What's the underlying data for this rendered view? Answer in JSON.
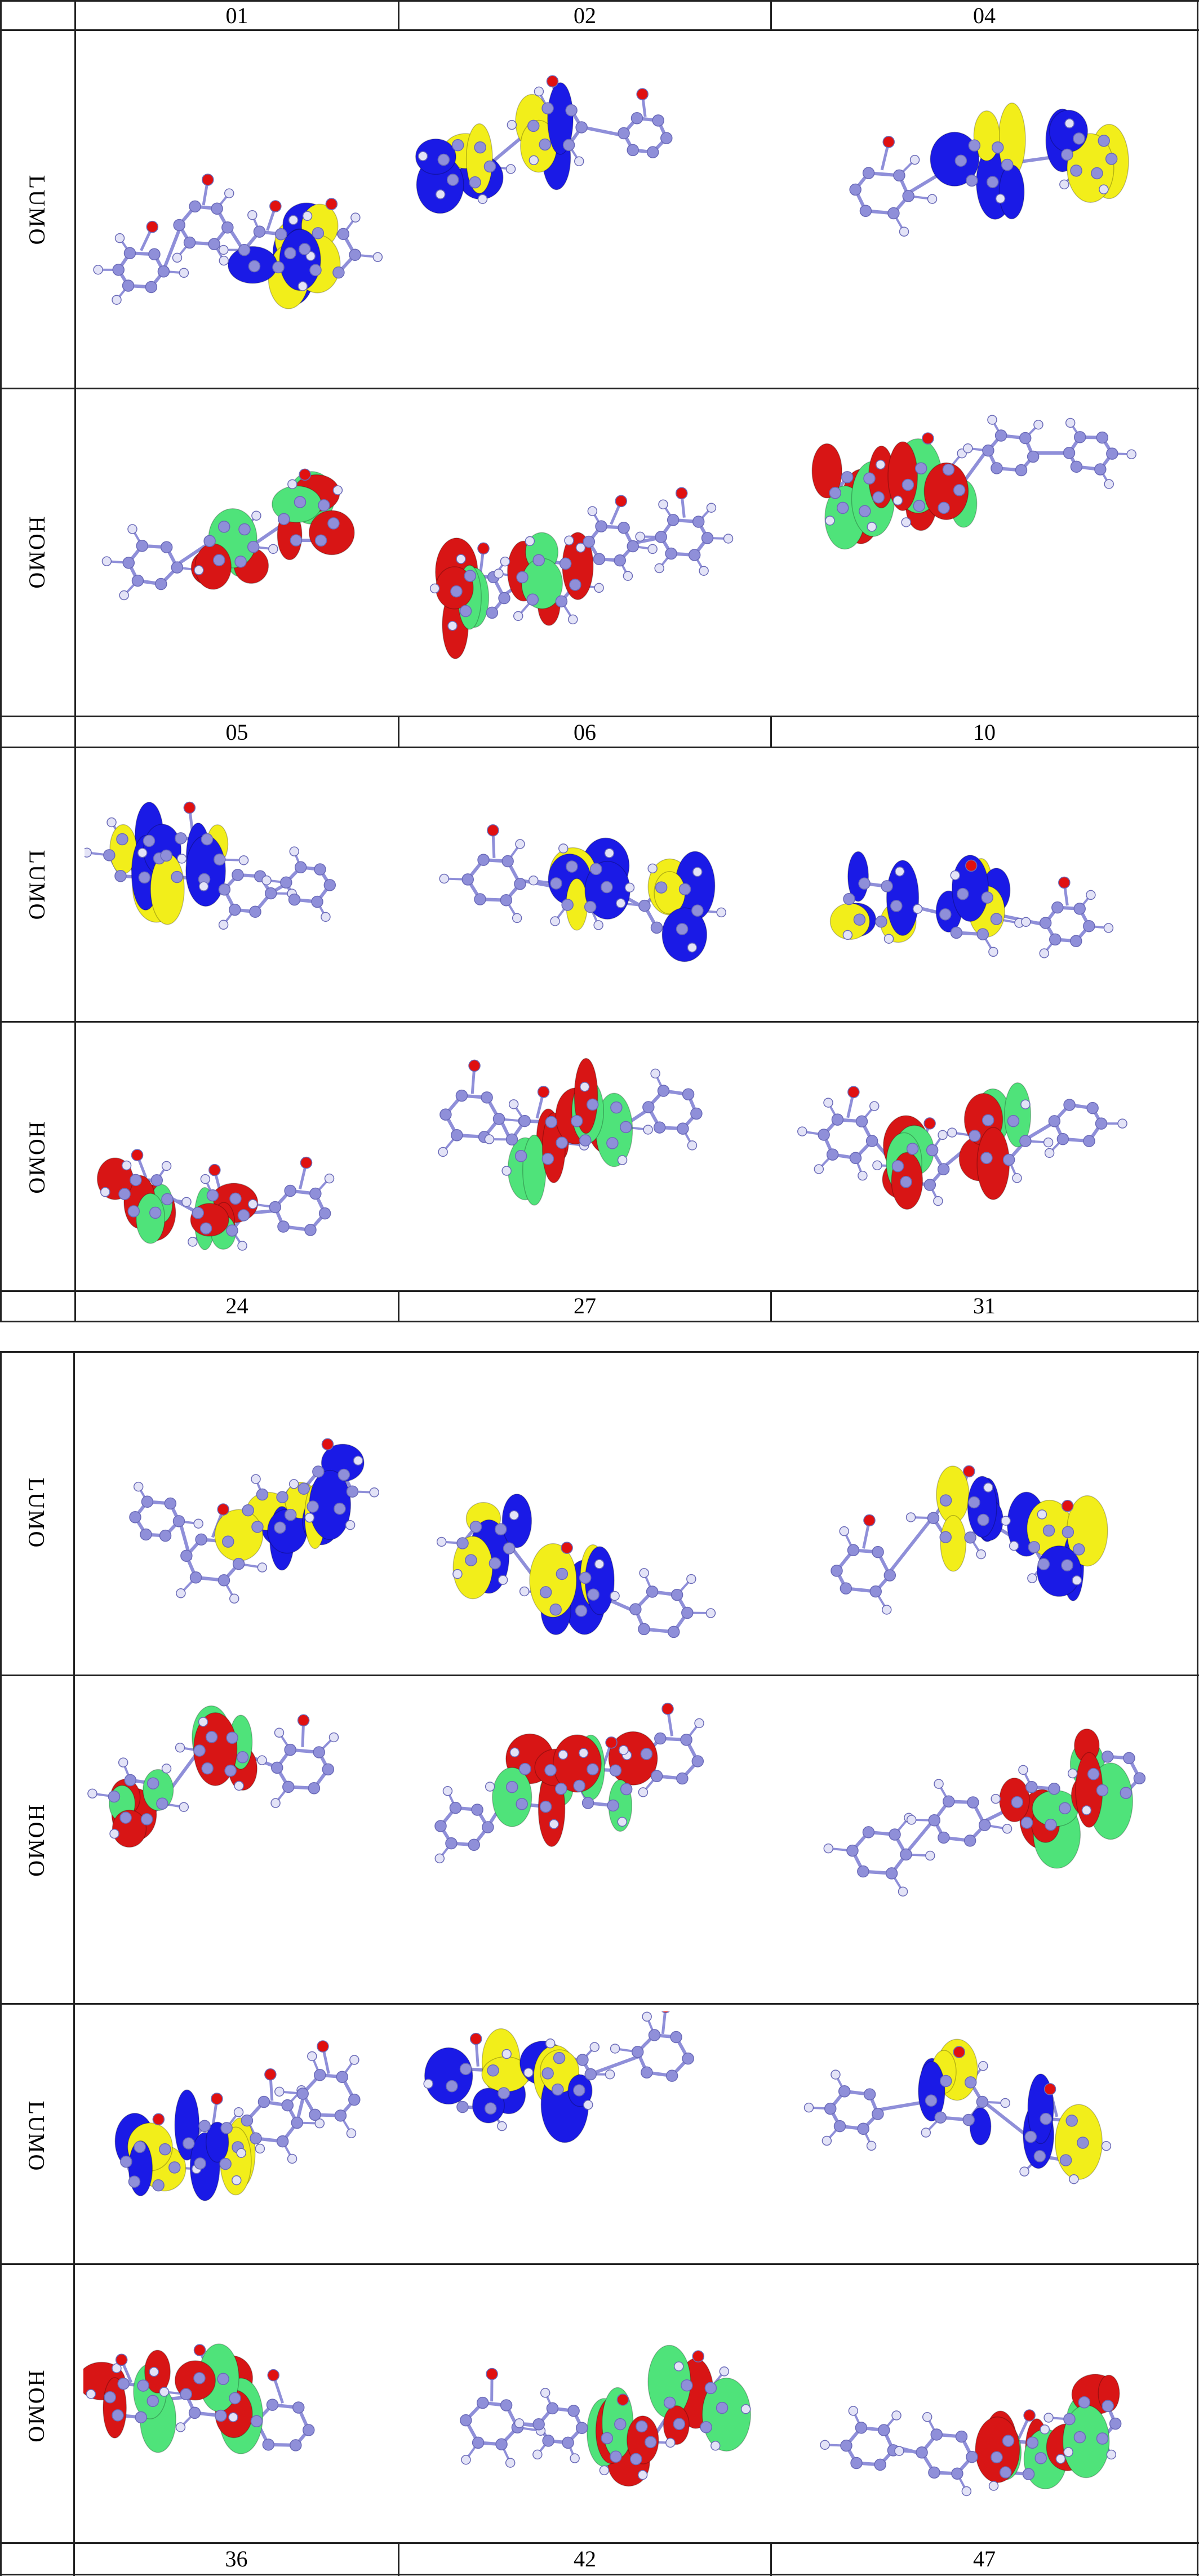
{
  "table_1": {
    "header_top": [
      "01",
      "02",
      "04"
    ],
    "header_mid": [
      "05",
      "06",
      "10"
    ],
    "footer": [
      "24",
      "27",
      "31"
    ],
    "rows": [
      "LUMO",
      "HOMO",
      "LUMO",
      "HOMO"
    ]
  },
  "table_2": {
    "rows": [
      "LUMO",
      "HOMO",
      "LUMO",
      "HOMO"
    ],
    "footer": [
      "36",
      "42",
      "47"
    ]
  },
  "colors": {
    "lumo_positive": "#1a1ae6",
    "lumo_negative": "#f2ee1a",
    "homo_positive": "#d81515",
    "homo_negative": "#4fe37a",
    "atom_carbon": "#8f8fd9",
    "atom_hydrogen": "#e3e3f7",
    "atom_oxygen": "#e01010",
    "atom_fluorine": "#7fd0f0"
  }
}
